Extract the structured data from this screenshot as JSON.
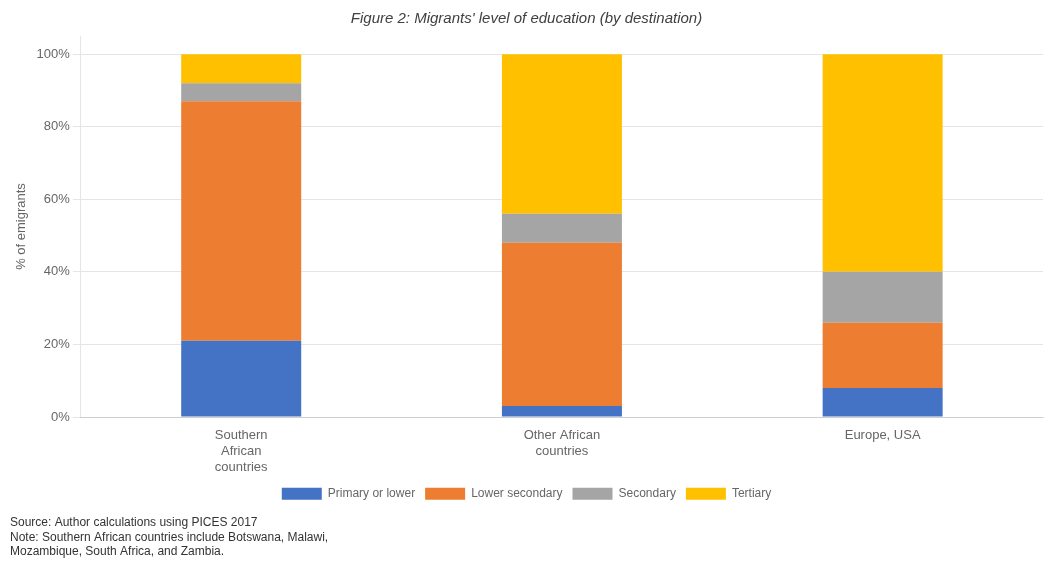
{
  "chart_data": {
    "type": "bar",
    "stacked": true,
    "title": "Figure 2: Migrants' level of education (by destination)",
    "y_label": "% of emigrants",
    "categories": [
      "Southern\nAfrican\ncountries",
      "Other African\ncountries",
      "Europe, USA"
    ],
    "series": [
      {
        "name": "Primary or lower",
        "color": "#4472C4",
        "values": [
          21,
          3,
          8
        ]
      },
      {
        "name": "Lower secondary",
        "color": "#ED7D31",
        "values": [
          66,
          45,
          18
        ]
      },
      {
        "name": "Secondary",
        "color": "#A5A5A5",
        "values": [
          5,
          8,
          14
        ]
      },
      {
        "name": "Tertiary",
        "color": "#FFC000",
        "values": [
          8,
          44,
          60
        ]
      }
    ],
    "ylim": [
      0,
      105
    ],
    "yticks": [
      {
        "value": 0,
        "label": "0%"
      },
      {
        "value": 20,
        "label": "20%"
      },
      {
        "value": 40,
        "label": "40%"
      },
      {
        "value": 60,
        "label": "60%"
      },
      {
        "value": 80,
        "label": "80%"
      },
      {
        "value": 100,
        "label": "100%"
      }
    ],
    "grid": true,
    "legend": "bottom",
    "annotations": [
      "Source: Author calculations using PICES 2017\nNote: Southern African countries include Botswana, Malawi,\nMozambique, South Africa, and Zambia."
    ]
  }
}
